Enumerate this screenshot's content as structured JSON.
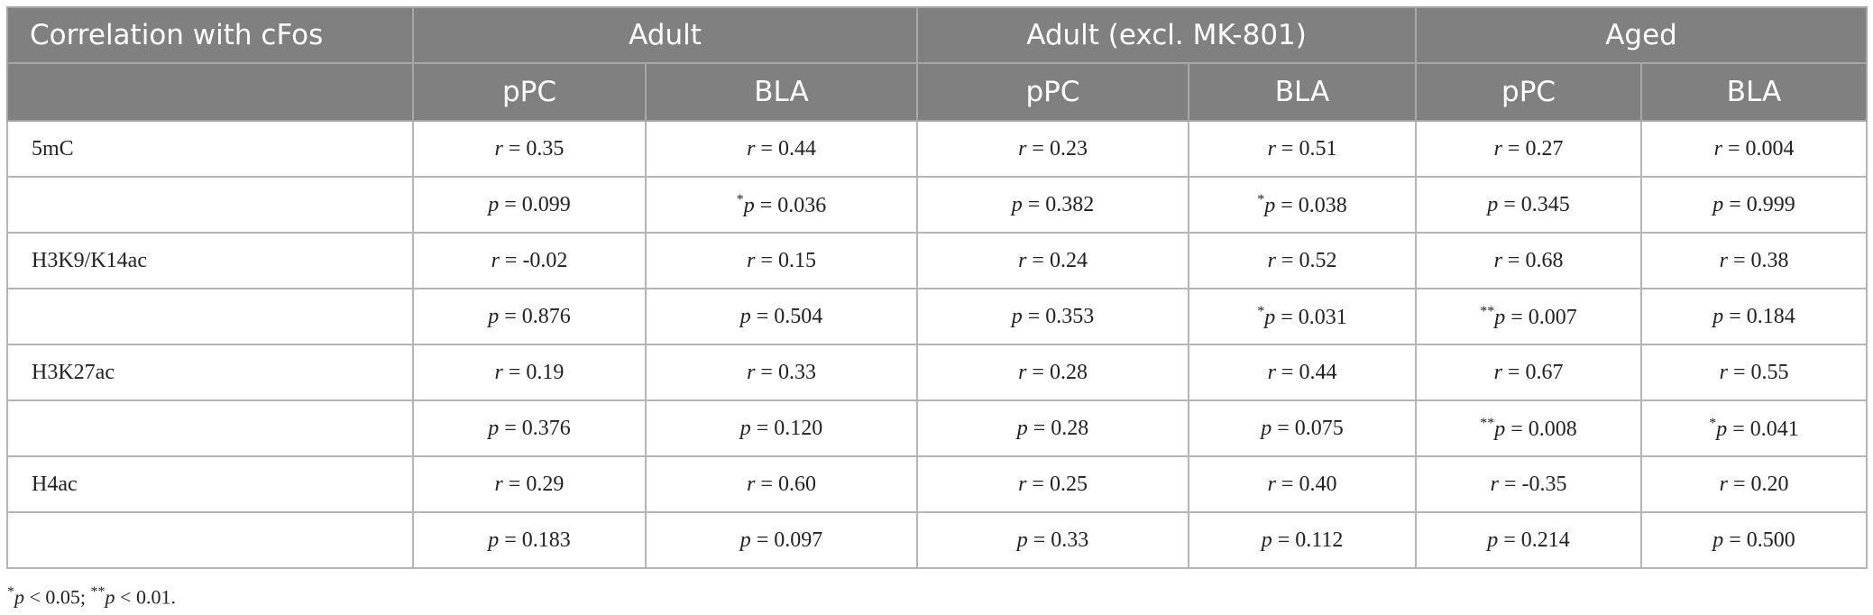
{
  "table": {
    "corner": "Correlation with cFos",
    "groups": [
      "Adult",
      "Adult (excl. MK-801)",
      "Aged"
    ],
    "subheaders": [
      "pPC",
      "BLA",
      "pPC",
      "BLA",
      "pPC",
      "BLA"
    ],
    "rows": [
      {
        "label": "5mC",
        "r": [
          "r = 0.35",
          "r = 0.44",
          "r = 0.23",
          "r = 0.51",
          "r = 0.27",
          "r = 0.004"
        ],
        "p": [
          "p = 0.099",
          "*p = 0.036",
          "p = 0.382",
          "*p = 0.038",
          "p = 0.345",
          "p = 0.999"
        ]
      },
      {
        "label": "H3K9/K14ac",
        "r": [
          "r = -0.02",
          "r = 0.15",
          "r = 0.24",
          "r = 0.52",
          "r = 0.68",
          "r = 0.38"
        ],
        "p": [
          "p = 0.876",
          "p = 0.504",
          "p = 0.353",
          "*p = 0.031",
          "**p = 0.007",
          "p = 0.184"
        ]
      },
      {
        "label": "H3K27ac",
        "r": [
          "r = 0.19",
          "r = 0.33",
          "r = 0.28",
          "r = 0.44",
          "r = 0.67",
          "r = 0.55"
        ],
        "p": [
          "p = 0.376",
          "p = 0.120",
          "p = 0.28",
          "p = 0.075",
          "**p = 0.008",
          "*p = 0.041"
        ]
      },
      {
        "label": "H4ac",
        "r": [
          "r = 0.29",
          "r = 0.60",
          "r = 0.25",
          "r = 0.40",
          "r = -0.35",
          "r = 0.20"
        ],
        "p": [
          "p = 0.183",
          "p = 0.097",
          "p = 0.33",
          "p = 0.112",
          "p = 0.214",
          "p = 0.500"
        ]
      }
    ],
    "footnote": "*p < 0.05; **p < 0.01."
  }
}
